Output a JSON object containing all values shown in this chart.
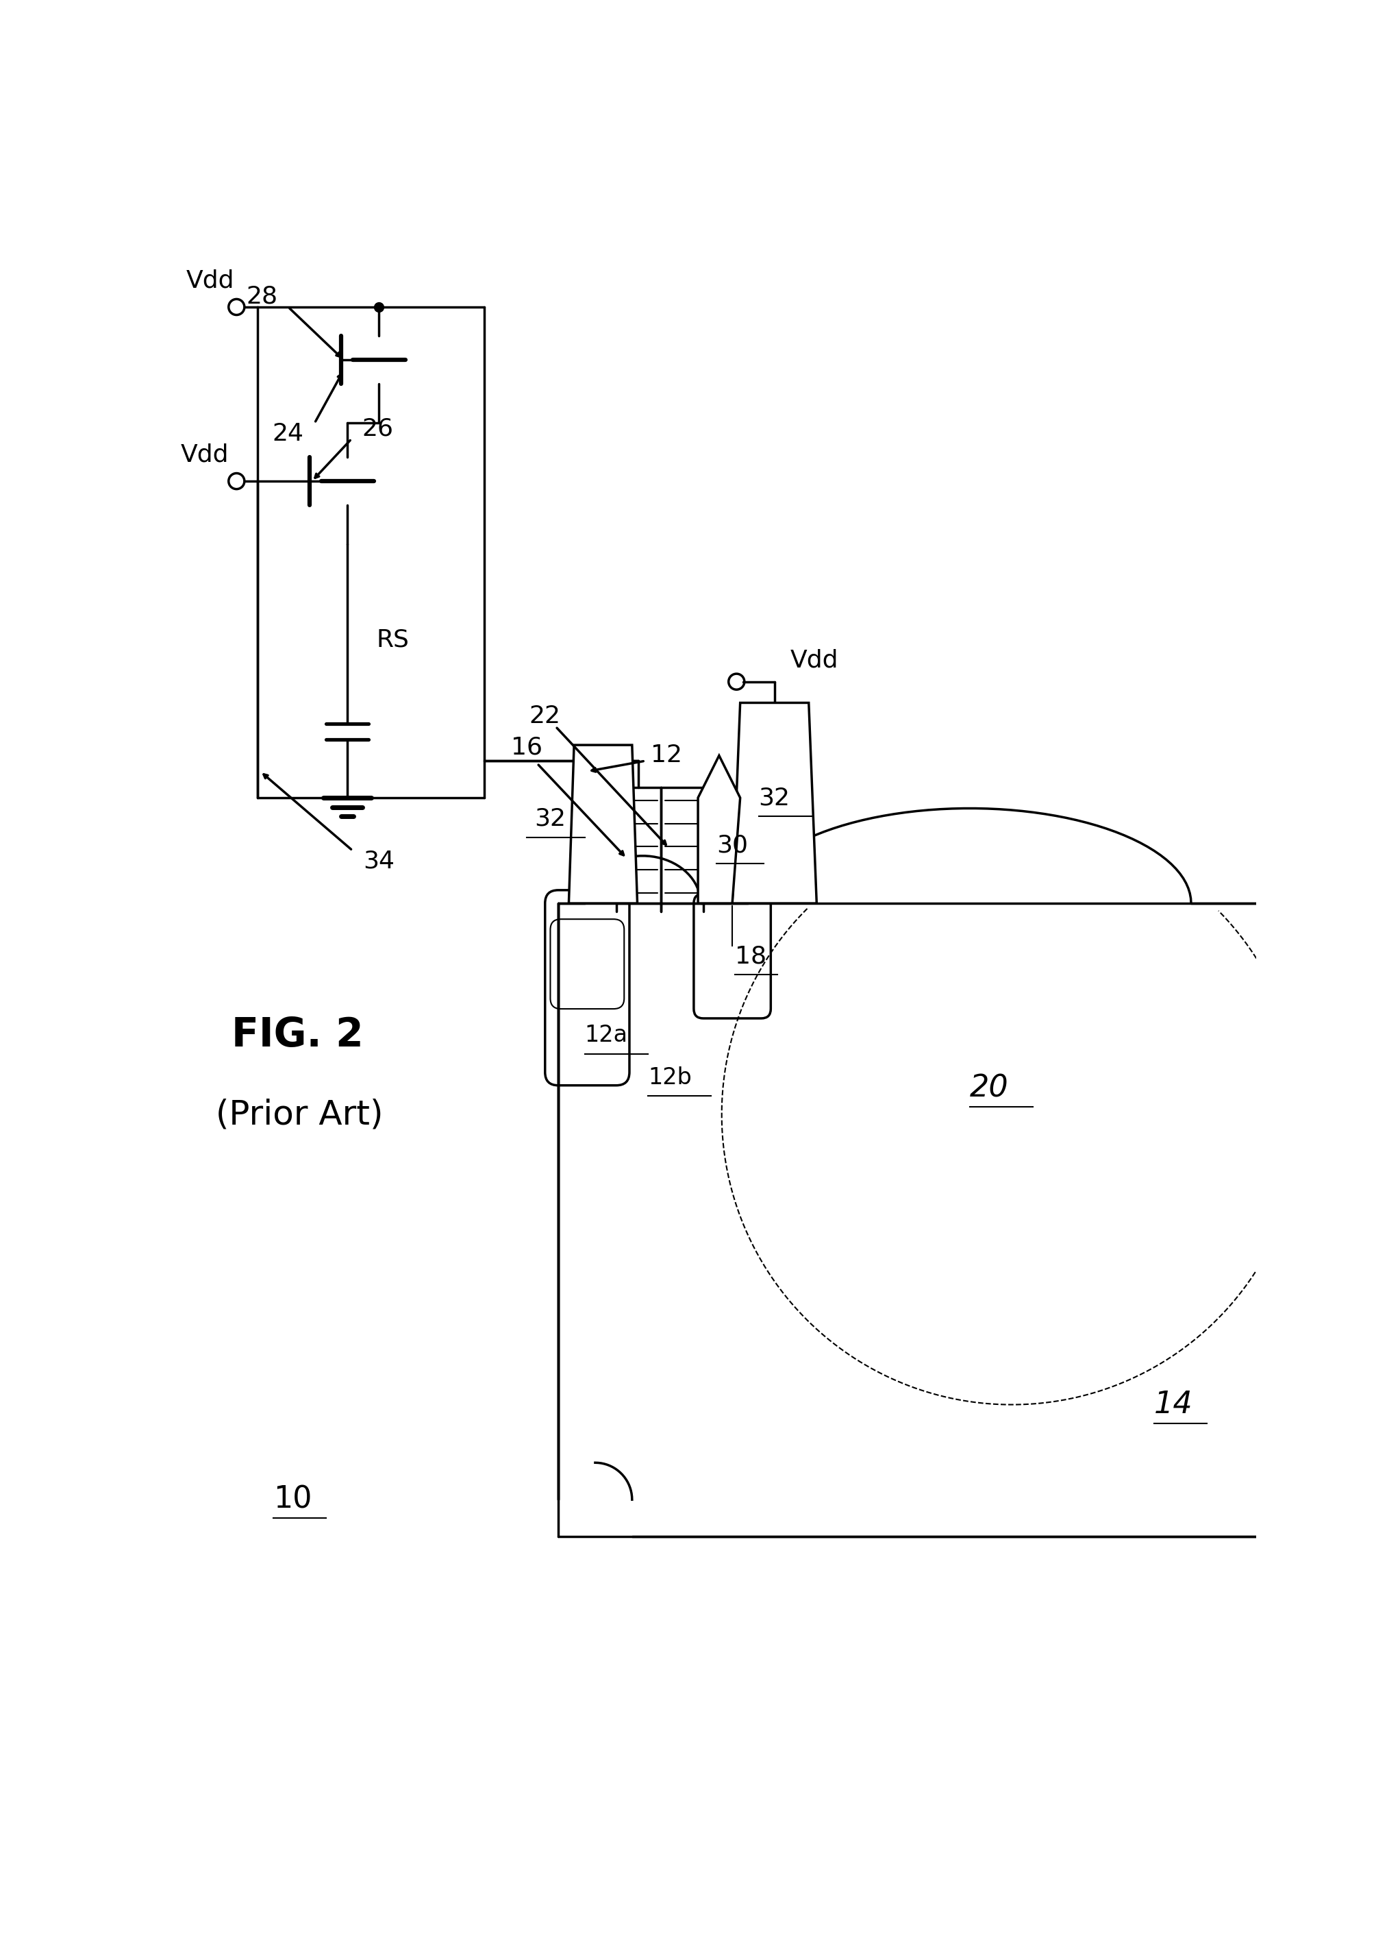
{
  "bg_color": "#ffffff",
  "line_color": "#000000",
  "lw": 2.5,
  "lw_thin": 1.5,
  "fig_title": "FIG. 2",
  "fig_subtitle": "(Prior Art)",
  "labels": {
    "10": "10",
    "12": "12",
    "12a": "12a",
    "12b": "12b",
    "14": "14",
    "16": "16",
    "18": "18",
    "20": "20",
    "22": "22",
    "24": "24",
    "26": "26",
    "28": "28",
    "30": "30",
    "32": "32",
    "34": "34",
    "RS": "RS",
    "Vdd": "Vdd"
  }
}
